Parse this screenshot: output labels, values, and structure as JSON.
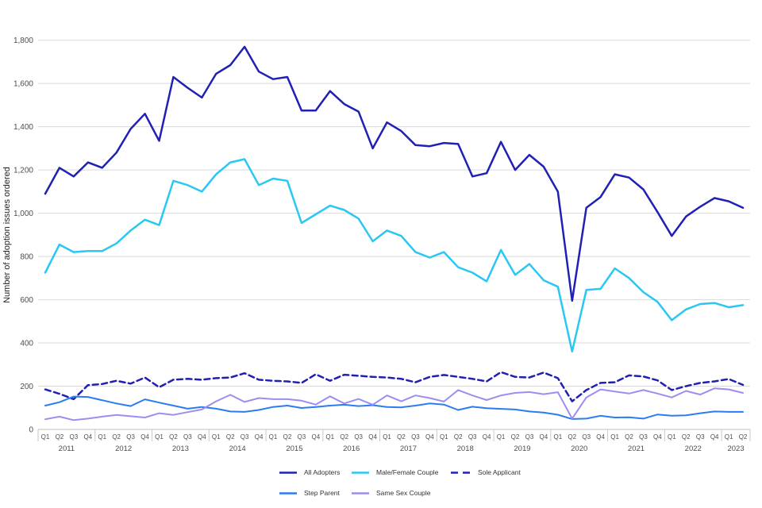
{
  "y_axis": {
    "title": "Number of adoption issues ordered",
    "max": 1800,
    "tick_step": 200,
    "tick_labels": [
      "0",
      "200",
      "400",
      "600",
      "800",
      "1,000",
      "1,200",
      "1,400",
      "1,600",
      "1,800"
    ]
  },
  "x_axis": {
    "years": [
      {
        "label": "2011",
        "quarters": [
          "Q1",
          "Q2",
          "Q3",
          "Q4"
        ]
      },
      {
        "label": "2012",
        "quarters": [
          "Q1",
          "Q2",
          "Q3",
          "Q4"
        ]
      },
      {
        "label": "2013",
        "quarters": [
          "Q1",
          "Q2",
          "Q3",
          "Q4"
        ]
      },
      {
        "label": "2014",
        "quarters": [
          "Q1",
          "Q2",
          "Q3",
          "Q4"
        ]
      },
      {
        "label": "2015",
        "quarters": [
          "Q1",
          "Q2",
          "Q3",
          "Q4"
        ]
      },
      {
        "label": "2016",
        "quarters": [
          "Q1",
          "Q2",
          "Q3",
          "Q4"
        ]
      },
      {
        "label": "2017",
        "quarters": [
          "Q1",
          "Q2",
          "Q3",
          "Q4"
        ]
      },
      {
        "label": "2018",
        "quarters": [
          "Q1",
          "Q2",
          "Q3",
          "Q4"
        ]
      },
      {
        "label": "2019",
        "quarters": [
          "Q1",
          "Q2",
          "Q3",
          "Q4"
        ]
      },
      {
        "label": "2020",
        "quarters": [
          "Q1",
          "Q2",
          "Q3",
          "Q4"
        ]
      },
      {
        "label": "2021",
        "quarters": [
          "Q1",
          "Q2",
          "Q3",
          "Q4"
        ]
      },
      {
        "label": "2022",
        "quarters": [
          "Q1",
          "Q2",
          "Q3",
          "Q4"
        ]
      },
      {
        "label": "2023",
        "quarters": [
          "Q1",
          "Q2"
        ]
      }
    ]
  },
  "chart_data": {
    "type": "line",
    "title": "",
    "ylabel": "Number of adoption issues ordered",
    "xlabel": "",
    "ylim": [
      0,
      1800
    ],
    "grid": true,
    "legend_position": "bottom",
    "categories": [
      "2011 Q1",
      "2011 Q2",
      "2011 Q3",
      "2011 Q4",
      "2012 Q1",
      "2012 Q2",
      "2012 Q3",
      "2012 Q4",
      "2013 Q1",
      "2013 Q2",
      "2013 Q3",
      "2013 Q4",
      "2014 Q1",
      "2014 Q2",
      "2014 Q3",
      "2014 Q4",
      "2015 Q1",
      "2015 Q2",
      "2015 Q3",
      "2015 Q4",
      "2016 Q1",
      "2016 Q2",
      "2016 Q3",
      "2016 Q4",
      "2017 Q1",
      "2017 Q2",
      "2017 Q3",
      "2017 Q4",
      "2018 Q1",
      "2018 Q2",
      "2018 Q3",
      "2018 Q4",
      "2019 Q1",
      "2019 Q2",
      "2019 Q3",
      "2019 Q4",
      "2020 Q1",
      "2020 Q2",
      "2020 Q3",
      "2020 Q4",
      "2021 Q1",
      "2021 Q2",
      "2021 Q3",
      "2021 Q4",
      "2022 Q1",
      "2022 Q2",
      "2022 Q3",
      "2022 Q4",
      "2023 Q1",
      "2023 Q2"
    ],
    "series": [
      {
        "name": "All Adopters",
        "color": "#2120b4",
        "dash": "solid",
        "width": 2.5,
        "values": [
          1090,
          1210,
          1170,
          1235,
          1210,
          1280,
          1390,
          1460,
          1335,
          1630,
          1580,
          1535,
          1645,
          1685,
          1770,
          1655,
          1620,
          1630,
          1475,
          1475,
          1565,
          1505,
          1470,
          1300,
          1420,
          1380,
          1315,
          1310,
          1325,
          1320,
          1170,
          1185,
          1330,
          1200,
          1270,
          1215,
          1100,
          595,
          1025,
          1075,
          1180,
          1165,
          1110,
          1005,
          895,
          985,
          1030,
          1070,
          1055,
          1025
        ]
      },
      {
        "name": "Male/Female Couple",
        "color": "#29c8f2",
        "dash": "solid",
        "width": 2.5,
        "values": [
          725,
          855,
          820,
          825,
          825,
          860,
          920,
          970,
          945,
          1150,
          1130,
          1100,
          1180,
          1235,
          1250,
          1130,
          1160,
          1150,
          955,
          995,
          1035,
          1015,
          975,
          870,
          920,
          895,
          820,
          795,
          820,
          750,
          725,
          685,
          830,
          715,
          765,
          690,
          660,
          360,
          645,
          650,
          745,
          700,
          635,
          590,
          505,
          555,
          580,
          585,
          565,
          575
        ]
      },
      {
        "name": "Sole Applicant",
        "color": "#2120b4",
        "dash": "dashed",
        "width": 2.5,
        "values": [
          185,
          165,
          140,
          205,
          210,
          225,
          212,
          240,
          195,
          230,
          234,
          230,
          237,
          240,
          260,
          230,
          225,
          222,
          215,
          255,
          225,
          253,
          248,
          243,
          240,
          234,
          218,
          243,
          252,
          243,
          234,
          222,
          265,
          243,
          240,
          263,
          237,
          130,
          182,
          215,
          218,
          250,
          245,
          227,
          182,
          200,
          215,
          222,
          233,
          206
        ]
      },
      {
        "name": "Step Parent",
        "color": "#2b7cf0",
        "dash": "solid",
        "width": 2,
        "values": [
          110,
          126,
          152,
          150,
          135,
          120,
          108,
          139,
          124,
          110,
          96,
          104,
          96,
          83,
          81,
          90,
          104,
          110,
          99,
          104,
          110,
          114,
          108,
          112,
          104,
          102,
          110,
          120,
          115,
          90,
          105,
          98,
          95,
          92,
          83,
          78,
          68,
          48,
          50,
          63,
          55,
          56,
          50,
          69,
          63,
          65,
          75,
          83,
          81,
          81
        ]
      },
      {
        "name": "Same Sex Couple",
        "color": "#9d8df0",
        "dash": "solid",
        "width": 2,
        "values": [
          47,
          59,
          43,
          50,
          59,
          67,
          61,
          55,
          75,
          67,
          80,
          92,
          130,
          160,
          127,
          145,
          140,
          140,
          133,
          115,
          153,
          120,
          141,
          114,
          157,
          130,
          157,
          145,
          129,
          182,
          157,
          136,
          157,
          169,
          173,
          163,
          172,
          50,
          148,
          185,
          175,
          166,
          182,
          166,
          148,
          178,
          161,
          190,
          185,
          169
        ]
      }
    ]
  },
  "style": {
    "gridline_color": "#d9d9d9",
    "axis_line_color": "#bfbfbf",
    "tick_color": "#c9c9c9"
  }
}
